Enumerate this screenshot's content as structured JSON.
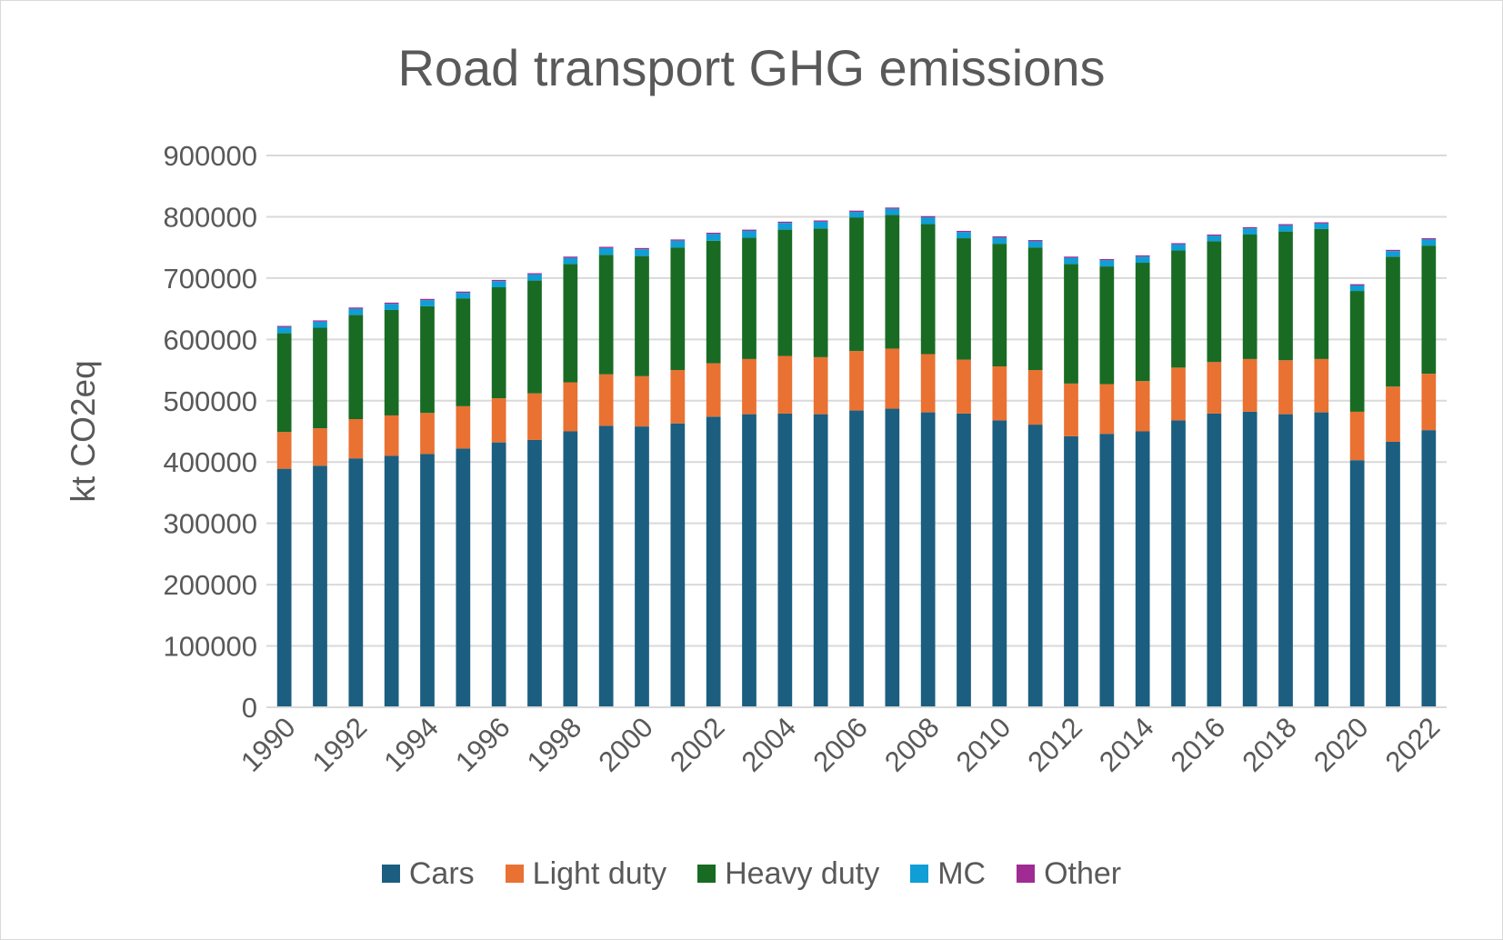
{
  "colors": {
    "Cars": "#1b5e80",
    "Light duty": "#e97132",
    "Heavy duty": "#196b24",
    "MC": "#0f9ed5",
    "Other": "#a02b93",
    "grid": "#d9d9d9",
    "text": "#595959"
  },
  "chart_data": {
    "type": "bar",
    "stacked": true,
    "title": "Road transport GHG emissions",
    "xlabel": "",
    "ylabel": "kt CO2eq",
    "ylim": [
      0,
      900000
    ],
    "yticks": [
      0,
      100000,
      200000,
      300000,
      400000,
      500000,
      600000,
      700000,
      800000,
      900000
    ],
    "grid": true,
    "legend_position": "bottom",
    "categories": [
      "1990",
      "1991",
      "1992",
      "1993",
      "1994",
      "1995",
      "1996",
      "1997",
      "1998",
      "1999",
      "2000",
      "2001",
      "2002",
      "2003",
      "2004",
      "2005",
      "2006",
      "2007",
      "2008",
      "2009",
      "2010",
      "2011",
      "2012",
      "2013",
      "2014",
      "2015",
      "2016",
      "2017",
      "2018",
      "2019",
      "2020",
      "2021",
      "2022"
    ],
    "xtick_labels": [
      "1990",
      "",
      "1992",
      "",
      "1994",
      "",
      "1996",
      "",
      "1998",
      "",
      "2000",
      "",
      "2002",
      "",
      "2004",
      "",
      "2006",
      "",
      "2008",
      "",
      "2010",
      "",
      "2012",
      "",
      "2014",
      "",
      "2016",
      "",
      "2018",
      "",
      "2020",
      "",
      "2022"
    ],
    "series": [
      {
        "name": "Cars",
        "values": [
          389000,
          394000,
          406000,
          410000,
          413000,
          422000,
          432000,
          436000,
          450000,
          459000,
          458000,
          463000,
          474000,
          478000,
          479000,
          478000,
          484000,
          487000,
          481000,
          479000,
          468000,
          461000,
          442000,
          446000,
          450000,
          468000,
          479000,
          482000,
          478000,
          481000,
          403000,
          433000,
          452000
        ]
      },
      {
        "name": "Light duty",
        "values": [
          60000,
          61000,
          64000,
          66000,
          67000,
          69000,
          72000,
          76000,
          80000,
          84000,
          82000,
          87000,
          87000,
          90000,
          94000,
          93000,
          97000,
          98000,
          95000,
          88000,
          88000,
          89000,
          86000,
          81000,
          82000,
          86000,
          84000,
          86000,
          88000,
          87000,
          79000,
          90000,
          92000
        ]
      },
      {
        "name": "Heavy duty",
        "values": [
          161000,
          164000,
          170000,
          172000,
          174000,
          176000,
          181000,
          184000,
          193000,
          195000,
          196000,
          200000,
          200000,
          198000,
          206000,
          210000,
          218000,
          218000,
          212000,
          198000,
          200000,
          200000,
          195000,
          192000,
          193000,
          191000,
          197000,
          203000,
          210000,
          212000,
          197000,
          212000,
          209000
        ]
      },
      {
        "name": "MC",
        "values": [
          10000,
          10000,
          10000,
          10000,
          10000,
          9000,
          10000,
          10000,
          10000,
          11000,
          11000,
          11000,
          11000,
          11000,
          11000,
          11000,
          9000,
          10000,
          11000,
          10000,
          10000,
          10000,
          10000,
          10000,
          10000,
          10000,
          9000,
          10000,
          10000,
          9000,
          9000,
          9000,
          10000
        ]
      },
      {
        "name": "Other",
        "values": [
          2000,
          2000,
          2000,
          2000,
          2000,
          2000,
          2000,
          2000,
          2000,
          2000,
          2000,
          2000,
          2000,
          2000,
          2000,
          2000,
          2000,
          2000,
          2000,
          2000,
          2000,
          2000,
          2000,
          2000,
          2000,
          2000,
          2000,
          2000,
          2000,
          2000,
          2000,
          2000,
          2000
        ]
      }
    ]
  }
}
